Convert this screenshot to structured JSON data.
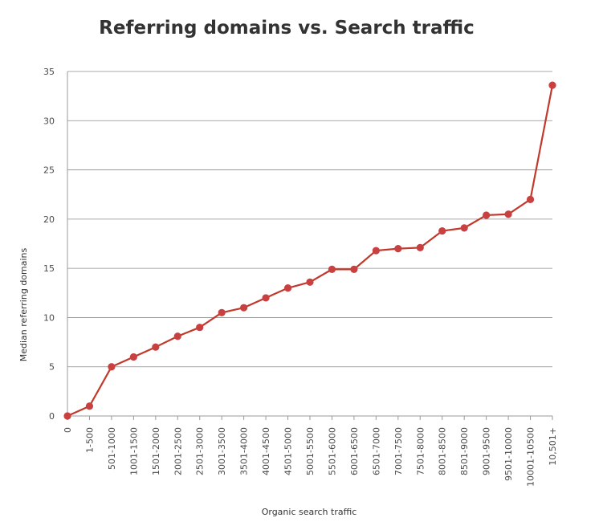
{
  "chart_data": {
    "type": "line",
    "title": "Referring domains vs. Search traffic",
    "xlabel": "Organic search traffic",
    "ylabel": "Median referring domains",
    "categories": [
      "0",
      "1-500",
      "501-1000",
      "1001-1500",
      "1501-2000",
      "2001-2500",
      "2501-3000",
      "3001-3500",
      "3501-4000",
      "4001-4500",
      "4501-5000",
      "5001-5500",
      "5501-6000",
      "6001-6500",
      "6501-7000",
      "7001-7500",
      "7501-8000",
      "8001-8500",
      "8501-9000",
      "9001-9500",
      "9501-10000",
      "10001-10500",
      "10,501+"
    ],
    "series": [
      {
        "values": [
          0,
          1,
          5,
          6,
          7,
          8.1,
          9,
          10.5,
          11,
          12,
          13,
          13.6,
          14.9,
          14.9,
          16.8,
          17,
          17.1,
          18.8,
          19.1,
          20.4,
          20.5,
          22,
          33.6
        ]
      }
    ],
    "ylim": [
      0,
      35
    ],
    "yticks": [
      0,
      5,
      10,
      15,
      20,
      25,
      30,
      35
    ],
    "grid": true,
    "legend": "none",
    "colors": {
      "line": "#c0392b",
      "marker": "#c94040",
      "grid": "#8c8c8c",
      "axis": "#9a9a9a"
    }
  }
}
